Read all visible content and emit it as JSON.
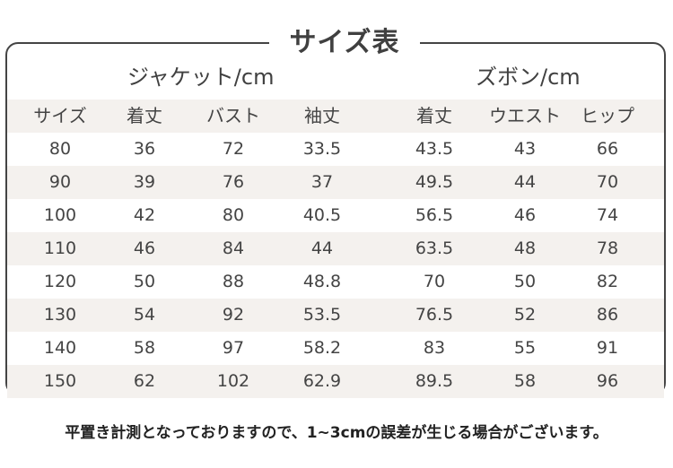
{
  "title": "サイズ表",
  "groups": {
    "jacket": "ジャケット/cm",
    "pants": "ズボン/cm"
  },
  "headers": [
    "サイズ",
    "着丈",
    "バスト",
    "袖丈",
    "着丈",
    "ウエスト",
    "ヒップ"
  ],
  "rows": [
    [
      "80",
      "36",
      "72",
      "33.5",
      "43.5",
      "43",
      "66"
    ],
    [
      "90",
      "39",
      "76",
      "37",
      "49.5",
      "44",
      "70"
    ],
    [
      "100",
      "42",
      "80",
      "40.5",
      "56.5",
      "46",
      "74"
    ],
    [
      "110",
      "46",
      "84",
      "44",
      "63.5",
      "48",
      "78"
    ],
    [
      "120",
      "50",
      "88",
      "48.8",
      "70",
      "50",
      "82"
    ],
    [
      "130",
      "54",
      "92",
      "53.5",
      "76.5",
      "52",
      "86"
    ],
    [
      "140",
      "58",
      "97",
      "58.2",
      "83",
      "55",
      "91"
    ],
    [
      "150",
      "62",
      "102",
      "62.9",
      "89.5",
      "58",
      "96"
    ]
  ],
  "note": "平置き計測となっておりますので、1~3cmの誤差が生じる場合がございます。",
  "colors": {
    "border": "#444444",
    "shaded_row": "#f4f1ee",
    "text": "#3a3a3a"
  }
}
